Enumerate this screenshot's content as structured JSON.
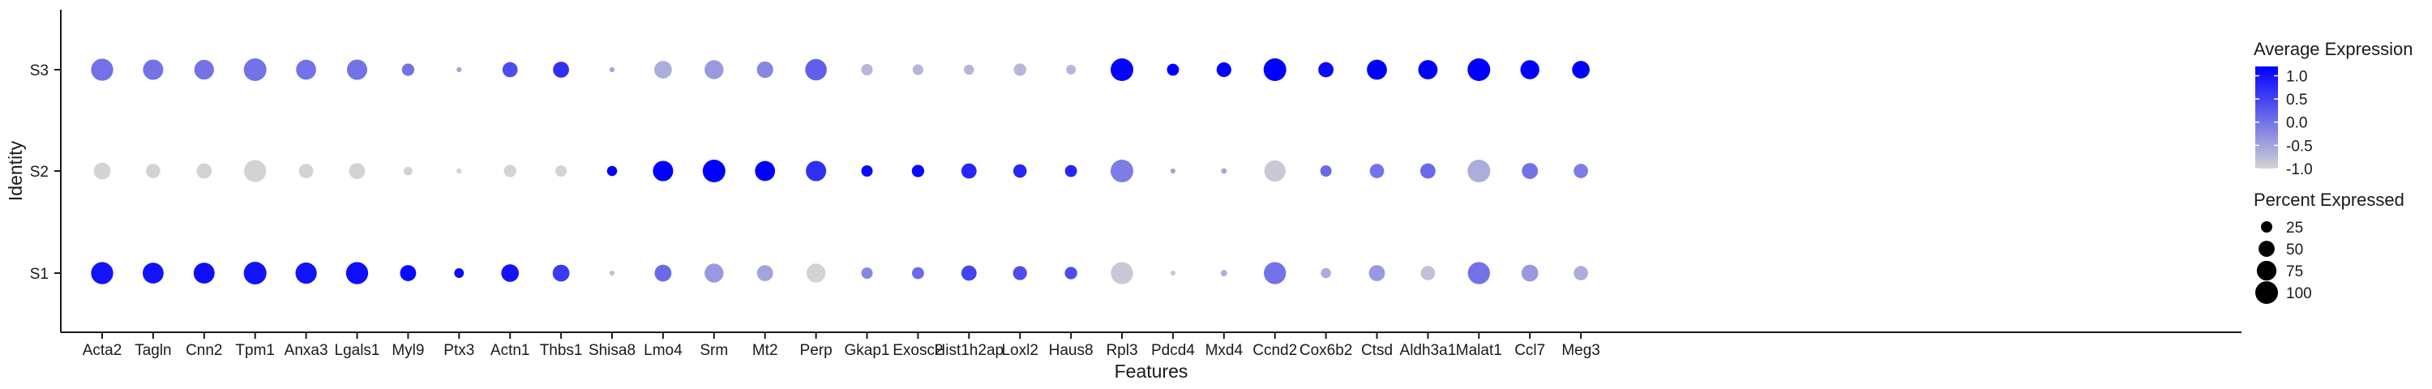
{
  "chart_data": {
    "type": "dotplot",
    "xlabel": "Features",
    "ylabel": "Identity",
    "features": [
      "Acta2",
      "Tagln",
      "Cnn2",
      "Tpm1",
      "Anxa3",
      "Lgals1",
      "Myl9",
      "Ptx3",
      "Actn1",
      "Thbs1",
      "Shisa8",
      "Lmo4",
      "Srm",
      "Mt2",
      "Perp",
      "Gkap1",
      "Exosc2",
      "Hist1h2ap",
      "Loxl2",
      "Haus8",
      "Rpl3",
      "Pdcd4",
      "Mxd4",
      "Ccnd2",
      "Cox6b2",
      "Ctsd",
      "Aldh3a1",
      "Malat1",
      "Ccl7",
      "Meg3"
    ],
    "identities": [
      "S1",
      "S2",
      "S3"
    ],
    "series": [
      {
        "name": "S1",
        "avg_expression": [
          1.0,
          1.0,
          1.05,
          1.0,
          1.0,
          1.05,
          1.1,
          1.1,
          1.0,
          0.6,
          -0.8,
          0.1,
          -0.4,
          -0.5,
          -1.0,
          -0.2,
          0.1,
          0.5,
          0.4,
          0.4,
          -0.9,
          -0.9,
          -0.6,
          0.0,
          -0.6,
          -0.4,
          -0.8,
          0.0,
          -0.4,
          -0.6
        ],
        "pct_expressed": [
          95,
          85,
          85,
          100,
          88,
          95,
          50,
          18,
          60,
          55,
          5,
          55,
          70,
          50,
          70,
          25,
          28,
          45,
          38,
          30,
          95,
          5,
          8,
          95,
          20,
          50,
          40,
          95,
          55,
          40
        ]
      },
      {
        "name": "S2",
        "avg_expression": [
          -1.0,
          -1.0,
          -1.0,
          -1.0,
          -1.0,
          -1.0,
          -1.0,
          -1.0,
          -1.0,
          -1.0,
          1.2,
          1.2,
          1.2,
          1.2,
          0.7,
          1.1,
          1.1,
          0.8,
          0.8,
          0.8,
          -0.1,
          -0.5,
          -0.5,
          -0.9,
          0.1,
          0.0,
          0.1,
          -0.6,
          0.0,
          -0.1
        ],
        "pct_expressed": [
          55,
          40,
          45,
          95,
          40,
          50,
          15,
          5,
          30,
          25,
          20,
          80,
          100,
          78,
          80,
          25,
          30,
          45,
          35,
          28,
          100,
          5,
          6,
          88,
          25,
          40,
          45,
          100,
          50,
          40
        ]
      },
      {
        "name": "S3",
        "avg_expression": [
          0.0,
          0.0,
          0.0,
          0.0,
          0.0,
          0.0,
          0.0,
          -0.5,
          0.4,
          0.7,
          -0.5,
          -0.6,
          -0.4,
          -0.2,
          0.2,
          -0.7,
          -0.7,
          -0.7,
          -0.7,
          -0.7,
          1.15,
          1.2,
          1.2,
          1.2,
          1.1,
          1.2,
          1.2,
          1.2,
          1.2,
          1.2
        ],
        "pct_expressed": [
          95,
          80,
          75,
          100,
          78,
          80,
          30,
          5,
          45,
          50,
          5,
          60,
          70,
          52,
          90,
          25,
          22,
          20,
          30,
          18,
          100,
          28,
          42,
          100,
          45,
          78,
          72,
          100,
          70,
          60
        ]
      }
    ],
    "color_legend": {
      "title": "Average Expression",
      "ticks": [
        "1.0",
        "0.5",
        "0.0",
        "-0.5",
        "-1.0"
      ],
      "low_color": "#d3d3d3",
      "high_color": "#0000ff",
      "range": [
        -1.0,
        1.2
      ]
    },
    "size_legend": {
      "title": "Percent Expressed",
      "values": [
        25,
        50,
        75,
        100
      ],
      "labels": [
        "25",
        "50",
        "75",
        "100"
      ]
    },
    "legend_placement": "right",
    "grid": false
  }
}
